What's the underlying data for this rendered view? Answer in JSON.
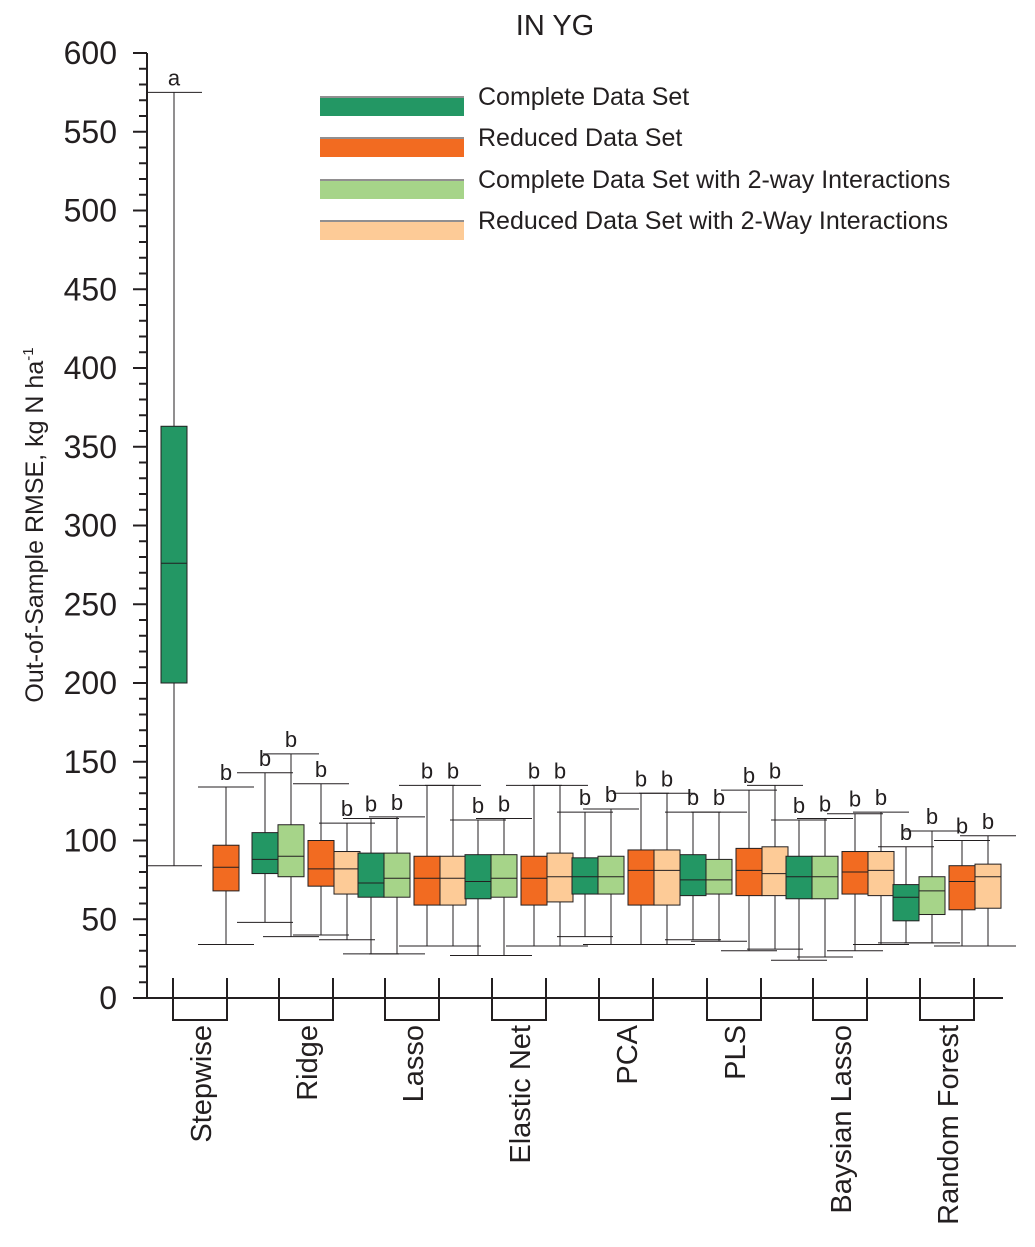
{
  "chart_data": {
    "type": "box",
    "title": "IN YG",
    "ylabel": "Out-of-Sample RMSE, kg N ha",
    "ylabel_sup": "-1",
    "xlabel": "",
    "ylim": [
      0,
      600
    ],
    "yticks": [
      0,
      50,
      100,
      150,
      200,
      250,
      300,
      350,
      400,
      450,
      500,
      550,
      600
    ],
    "legend_position": "top-right",
    "series": [
      {
        "name": "Complete Data Set",
        "color": "#239764"
      },
      {
        "name": "Reduced Data Set",
        "color": "#f26b21"
      },
      {
        "name": "Complete Data Set with 2-way Interactions",
        "color": "#a6d489"
      },
      {
        "name": "Reduced Data Set with 2-Way Interactions",
        "color": "#fdcb97"
      }
    ],
    "categories": [
      "Stepwise",
      "Ridge",
      "Lasso",
      "Elastic Net",
      "PCA",
      "PLS",
      "Baysian Lasso",
      "Random Forest"
    ],
    "groups": [
      {
        "category": "Stepwise",
        "boxes": [
          {
            "series": 0,
            "min": 84,
            "q1": 200,
            "median": 276,
            "q3": 363,
            "max": 575,
            "letter": "a"
          },
          {
            "series": 1,
            "min": 34,
            "q1": 68,
            "median": 83,
            "q3": 97,
            "max": 134,
            "letter": "b"
          }
        ]
      },
      {
        "category": "Ridge",
        "boxes": [
          {
            "series": 0,
            "min": 48,
            "q1": 79,
            "median": 88,
            "q3": 105,
            "max": 143,
            "letter": "b"
          },
          {
            "series": 2,
            "min": 39,
            "q1": 77,
            "median": 90,
            "q3": 110,
            "max": 155,
            "letter": "b"
          },
          {
            "series": 1,
            "min": 40,
            "q1": 71,
            "median": 82,
            "q3": 100,
            "max": 136,
            "letter": "b"
          },
          {
            "series": 3,
            "min": 37,
            "q1": 66,
            "median": 82,
            "q3": 93,
            "max": 111,
            "letter": "b"
          }
        ]
      },
      {
        "category": "Lasso",
        "boxes": [
          {
            "series": 0,
            "min": 28,
            "q1": 64,
            "median": 73,
            "q3": 92,
            "max": 114,
            "letter": "b"
          },
          {
            "series": 2,
            "min": 28,
            "q1": 64,
            "median": 76,
            "q3": 92,
            "max": 115,
            "letter": "b"
          },
          {
            "series": 1,
            "min": 33,
            "q1": 59,
            "median": 76,
            "q3": 90,
            "max": 135,
            "letter": "b"
          },
          {
            "series": 3,
            "min": 33,
            "q1": 59,
            "median": 76,
            "q3": 90,
            "max": 135,
            "letter": "b"
          }
        ]
      },
      {
        "category": "Elastic Net",
        "boxes": [
          {
            "series": 0,
            "min": 27,
            "q1": 63,
            "median": 74,
            "q3": 91,
            "max": 113,
            "letter": "b"
          },
          {
            "series": 2,
            "min": 27,
            "q1": 64,
            "median": 76,
            "q3": 91,
            "max": 114,
            "letter": "b"
          },
          {
            "series": 1,
            "min": 33,
            "q1": 59,
            "median": 76,
            "q3": 90,
            "max": 135,
            "letter": "b"
          },
          {
            "series": 3,
            "min": 33,
            "q1": 61,
            "median": 77,
            "q3": 92,
            "max": 135,
            "letter": "b"
          }
        ]
      },
      {
        "category": "PCA",
        "boxes": [
          {
            "series": 0,
            "min": 39,
            "q1": 66,
            "median": 77,
            "q3": 89,
            "max": 118,
            "letter": "b"
          },
          {
            "series": 2,
            "min": 34,
            "q1": 66,
            "median": 77,
            "q3": 90,
            "max": 120,
            "letter": "b"
          },
          {
            "series": 1,
            "min": 34,
            "q1": 59,
            "median": 81,
            "q3": 94,
            "max": 130,
            "letter": "b"
          },
          {
            "series": 3,
            "min": 34,
            "q1": 59,
            "median": 81,
            "q3": 94,
            "max": 130,
            "letter": "b"
          }
        ]
      },
      {
        "category": "PLS",
        "boxes": [
          {
            "series": 0,
            "min": 37,
            "q1": 65,
            "median": 75,
            "q3": 91,
            "max": 118,
            "letter": "b"
          },
          {
            "series": 2,
            "min": 36,
            "q1": 66,
            "median": 75,
            "q3": 88,
            "max": 118,
            "letter": "b"
          },
          {
            "series": 1,
            "min": 30,
            "q1": 65,
            "median": 81,
            "q3": 95,
            "max": 132,
            "letter": "b"
          },
          {
            "series": 3,
            "min": 31,
            "q1": 65,
            "median": 79,
            "q3": 96,
            "max": 135,
            "letter": "b"
          }
        ]
      },
      {
        "category": "Baysian Lasso",
        "boxes": [
          {
            "series": 0,
            "min": 24,
            "q1": 63,
            "median": 77,
            "q3": 90,
            "max": 113,
            "letter": "b"
          },
          {
            "series": 2,
            "min": 26,
            "q1": 63,
            "median": 77,
            "q3": 90,
            "max": 114,
            "letter": "b"
          },
          {
            "series": 1,
            "min": 30,
            "q1": 66,
            "median": 80,
            "q3": 93,
            "max": 117,
            "letter": "b"
          },
          {
            "series": 3,
            "min": 34,
            "q1": 65,
            "median": 81,
            "q3": 93,
            "max": 118,
            "letter": "b"
          }
        ]
      },
      {
        "category": "Random Forest",
        "boxes": [
          {
            "series": 0,
            "min": 35,
            "q1": 49,
            "median": 64,
            "q3": 72,
            "max": 96,
            "letter": "b"
          },
          {
            "series": 2,
            "min": 35,
            "q1": 53,
            "median": 68,
            "q3": 77,
            "max": 106,
            "letter": "b"
          },
          {
            "series": 1,
            "min": 33,
            "q1": 56,
            "median": 74,
            "q3": 84,
            "max": 100,
            "letter": "b"
          },
          {
            "series": 3,
            "min": 33,
            "q1": 57,
            "median": 77,
            "q3": 85,
            "max": 103,
            "letter": "b"
          }
        ]
      }
    ]
  }
}
